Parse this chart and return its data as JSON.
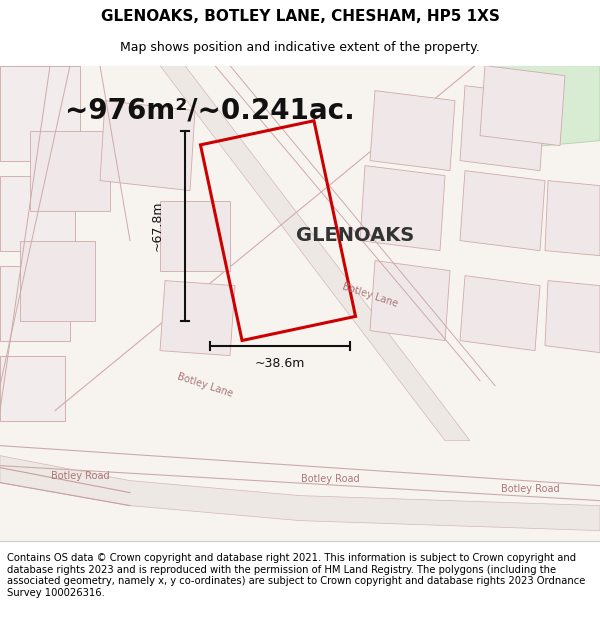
{
  "title": "GLENOAKS, BOTLEY LANE, CHESHAM, HP5 1XS",
  "subtitle": "Map shows position and indicative extent of the property.",
  "area_text": "~976m²/~0.241ac.",
  "label_glenoaks": "GLENOAKS",
  "dim_width": "~38.6m",
  "dim_height": "~67.8m",
  "footer": "Contains OS data © Crown copyright and database right 2021. This information is subject to Crown copyright and database rights 2023 and is reproduced with the permission of HM Land Registry. The polygons (including the associated geometry, namely x, y co-ordinates) are subject to Crown copyright and database rights 2023 Ordnance Survey 100026316.",
  "bg_color": "#f5f4f2",
  "map_bg": "#f9f8f6",
  "road_color": "#e8c8c8",
  "property_outline_color": "#cc0000",
  "dimension_color": "#111111",
  "title_fontsize": 11,
  "subtitle_fontsize": 9,
  "area_fontsize": 20,
  "label_fontsize": 14,
  "footer_fontsize": 7.2
}
